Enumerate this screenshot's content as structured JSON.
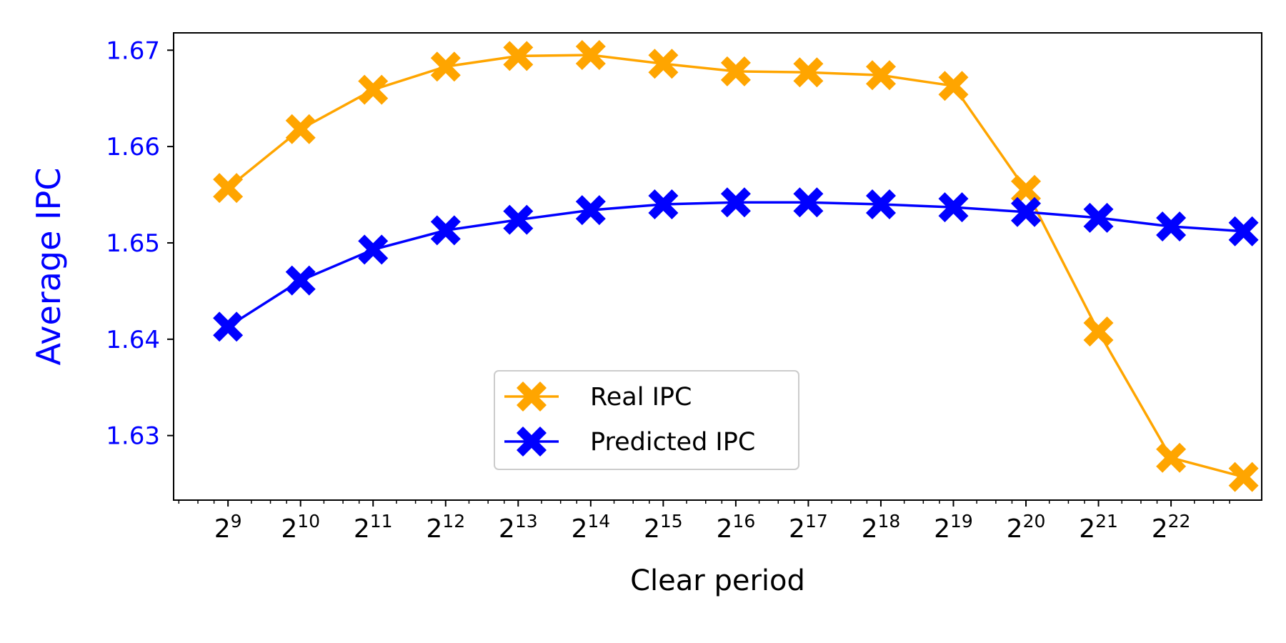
{
  "chart_data": {
    "type": "line",
    "xlabel": "Clear period",
    "ylabel": "Average IPC",
    "x_scale": "log2",
    "x": [
      512,
      1024,
      2048,
      4096,
      8192,
      16384,
      32768,
      65536,
      131072,
      262144,
      524288,
      1048576,
      2097152,
      4194304,
      8388608
    ],
    "xticks": [
      {
        "value": 512,
        "base": "2",
        "exp": "9"
      },
      {
        "value": 1024,
        "base": "2",
        "exp": "10"
      },
      {
        "value": 2048,
        "base": "2",
        "exp": "11"
      },
      {
        "value": 4096,
        "base": "2",
        "exp": "12"
      },
      {
        "value": 8192,
        "base": "2",
        "exp": "13"
      },
      {
        "value": 16384,
        "base": "2",
        "exp": "14"
      },
      {
        "value": 32768,
        "base": "2",
        "exp": "15"
      },
      {
        "value": 65536,
        "base": "2",
        "exp": "16"
      },
      {
        "value": 131072,
        "base": "2",
        "exp": "17"
      },
      {
        "value": 262144,
        "base": "2",
        "exp": "18"
      },
      {
        "value": 524288,
        "base": "2",
        "exp": "19"
      },
      {
        "value": 1048576,
        "base": "2",
        "exp": "20"
      },
      {
        "value": 2097152,
        "base": "2",
        "exp": "21"
      },
      {
        "value": 4194304,
        "base": "2",
        "exp": "22"
      }
    ],
    "yticks": [
      "1.63",
      "1.64",
      "1.65",
      "1.66",
      "1.67"
    ],
    "ylim": [
      1.6233,
      1.6718
    ],
    "grid": false,
    "legend_position": "lower-center",
    "series": [
      {
        "name": "Real IPC",
        "color": "#ffa500",
        "marker": "X",
        "values": [
          1.6557,
          1.6618,
          1.6659,
          1.6683,
          1.6694,
          1.6695,
          1.6686,
          1.6678,
          1.6677,
          1.6674,
          1.6663,
          1.6555,
          1.6408,
          1.6277,
          1.6257
        ]
      },
      {
        "name": "Predicted IPC",
        "color": "#0000ff",
        "marker": "X",
        "values": [
          1.6413,
          1.6461,
          1.6493,
          1.6513,
          1.6524,
          1.6534,
          1.654,
          1.6542,
          1.6542,
          1.654,
          1.6537,
          1.6532,
          1.6526,
          1.6517,
          1.6512
        ]
      }
    ],
    "colors": {
      "ylabel": "#0000ff",
      "ytick_labels": "#0000ff",
      "axis": "#000000"
    }
  }
}
